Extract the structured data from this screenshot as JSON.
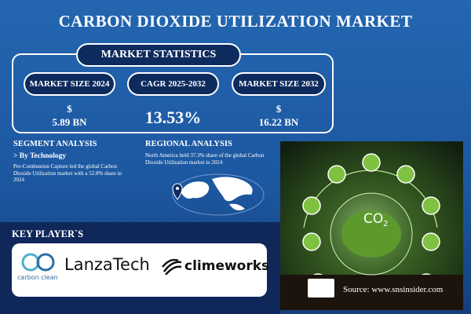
{
  "header": {
    "title": "CARBON DIOXIDE UTILIZATION MARKET"
  },
  "statistics": {
    "heading": "MARKET STATISTICS",
    "items": [
      {
        "label": "MARKET SIZE 2024",
        "currency": "$",
        "value": "5.89 BN"
      },
      {
        "label": "CAGR 2025-2032",
        "value": "13.53%"
      },
      {
        "label": "MARKET SIZE 2032",
        "currency": "$",
        "value": "16.22 BN"
      }
    ]
  },
  "segment": {
    "heading": "SEGMENT ANALYSIS",
    "subheading": "> By Technology",
    "text": "Pre-Combustion Capture led the global Carbon Dioxide Utilization market with a 52.8% share in 2024"
  },
  "regional": {
    "heading": "REGIONAL ANALYSIS",
    "text": "North America held 37.3% share of the global Carbon Dioxide Utilization market in 2024"
  },
  "image": {
    "label": "CO",
    "subscript": "2"
  },
  "key_players": {
    "heading": "KEY PLAYER`S",
    "logos": [
      "carbon clean",
      "LanzaTech",
      "climeworks"
    ]
  },
  "footer": {
    "source": "Source: www.snsinsider.com"
  }
}
